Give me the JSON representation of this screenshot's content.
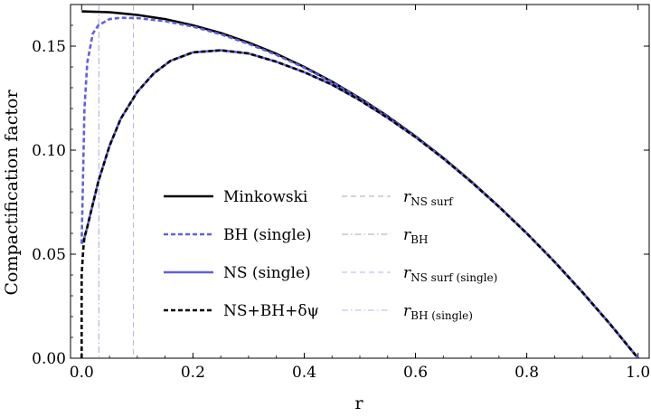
{
  "chart_data": {
    "type": "line",
    "xlabel": "r",
    "ylabel": "Compactification factor",
    "xlim": [
      -0.02,
      1.02
    ],
    "ylim": [
      0.0,
      0.17
    ],
    "xticks": [
      0.0,
      0.2,
      0.4,
      0.6,
      0.8,
      1.0
    ],
    "xtick_labels": [
      "0.0",
      "0.2",
      "0.4",
      "0.6",
      "0.8",
      "1.0"
    ],
    "yticks": [
      0.0,
      0.05,
      0.1,
      0.15
    ],
    "ytick_labels": [
      "0.00",
      "0.05",
      "0.10",
      "0.15"
    ],
    "grid": false,
    "legend_position": "center-left",
    "vlines": [
      {
        "name": "r_NS surf",
        "x": 0.093,
        "color": "#aaaaaa",
        "style": "dashed"
      },
      {
        "name": "r_BH",
        "x": 0.031,
        "color": "#aaaaaa",
        "style": "dashdot"
      },
      {
        "name": "r_NS surf (single)",
        "x": 0.093,
        "color": "#b6b6ee",
        "style": "dashed"
      },
      {
        "name": "r_BH (single)",
        "x": 0.031,
        "color": "#b6b6ee",
        "style": "dashdot"
      }
    ],
    "series": [
      {
        "name": "Minkowski",
        "color": "#000000",
        "style": "solid",
        "x": [
          0.0,
          0.05,
          0.1,
          0.15,
          0.2,
          0.25,
          0.3,
          0.35,
          0.4,
          0.45,
          0.5,
          0.55,
          0.6,
          0.65,
          0.7,
          0.75,
          0.8,
          0.85,
          0.9,
          0.95,
          1.0
        ],
        "y": [
          0.1667,
          0.1663,
          0.165,
          0.163,
          0.16,
          0.1563,
          0.1517,
          0.1463,
          0.14,
          0.1329,
          0.125,
          0.1163,
          0.1067,
          0.0963,
          0.085,
          0.0729,
          0.06,
          0.0463,
          0.0317,
          0.0163,
          0.0
        ]
      },
      {
        "name": "BH (single)",
        "color": "#6060e0",
        "style": "dashed",
        "x": [
          0.0,
          0.005,
          0.01,
          0.02,
          0.03,
          0.05,
          0.07,
          0.1,
          0.15,
          0.2,
          0.25,
          0.3,
          0.35,
          0.4,
          0.45,
          0.5,
          0.55,
          0.6,
          0.65,
          0.7,
          0.75,
          0.8,
          0.85,
          0.9,
          0.95,
          1.0
        ],
        "y": [
          0.055,
          0.12,
          0.142,
          0.156,
          0.16,
          0.163,
          0.1636,
          0.1635,
          0.162,
          0.1594,
          0.1557,
          0.1511,
          0.1458,
          0.1396,
          0.1326,
          0.1248,
          0.1161,
          0.1066,
          0.0962,
          0.085,
          0.0729,
          0.06,
          0.0463,
          0.0317,
          0.0163,
          0.0
        ]
      },
      {
        "name": "NS (single)",
        "color": "#6060e0",
        "style": "solid",
        "x": [
          0.0,
          0.005,
          0.01,
          0.02,
          0.03,
          0.05,
          0.07,
          0.1,
          0.13,
          0.16,
          0.2,
          0.25,
          0.3,
          0.35,
          0.4,
          0.45,
          0.5,
          0.55,
          0.6,
          0.65,
          0.7,
          0.75,
          0.8,
          0.85,
          0.9,
          0.95,
          1.0
        ],
        "y": [
          0.055,
          0.058,
          0.063,
          0.074,
          0.085,
          0.102,
          0.115,
          0.128,
          0.137,
          0.143,
          0.147,
          0.148,
          0.1465,
          0.1425,
          0.1375,
          0.1315,
          0.124,
          0.1155,
          0.1063,
          0.096,
          0.0848,
          0.0728,
          0.06,
          0.0463,
          0.0317,
          0.0163,
          0.0
        ]
      },
      {
        "name": "NS+BH+δψ",
        "color": "#000000",
        "style": "dashed",
        "x": [
          0.0,
          0.0,
          0.003,
          0.005,
          0.01,
          0.02,
          0.03,
          0.05,
          0.07,
          0.1,
          0.13,
          0.16,
          0.2,
          0.25,
          0.3,
          0.35,
          0.4,
          0.45,
          0.5,
          0.55,
          0.6,
          0.65,
          0.7,
          0.75,
          0.8,
          0.85,
          0.9,
          0.95,
          1.0
        ],
        "y": [
          0.0,
          0.04,
          0.053,
          0.058,
          0.063,
          0.074,
          0.085,
          0.102,
          0.115,
          0.128,
          0.137,
          0.143,
          0.147,
          0.148,
          0.1465,
          0.1425,
          0.1375,
          0.1315,
          0.124,
          0.1155,
          0.1063,
          0.096,
          0.0848,
          0.0728,
          0.06,
          0.0463,
          0.0317,
          0.0163,
          0.0
        ]
      }
    ]
  },
  "legend": {
    "left": [
      {
        "label": "Minkowski",
        "color": "#000000",
        "style": "solid"
      },
      {
        "label": "BH (single)",
        "color": "#6060e0",
        "style": "dashed"
      },
      {
        "label": "NS (single)",
        "color": "#6060e0",
        "style": "solid"
      },
      {
        "label": "NS+BH+δψ",
        "color": "#000000",
        "style": "dashed"
      }
    ],
    "right": [
      {
        "main": "r",
        "sub": "NS surf",
        "color": "#aaaaaa",
        "style": "dashed"
      },
      {
        "main": "r",
        "sub": "BH",
        "color": "#aaaaaa",
        "style": "dashdot"
      },
      {
        "main": "r",
        "sub": "NS surf (single)",
        "color": "#b6b6ee",
        "style": "dashed"
      },
      {
        "main": "r",
        "sub": "BH (single)",
        "color": "#b6b6ee",
        "style": "dashdot"
      }
    ]
  }
}
